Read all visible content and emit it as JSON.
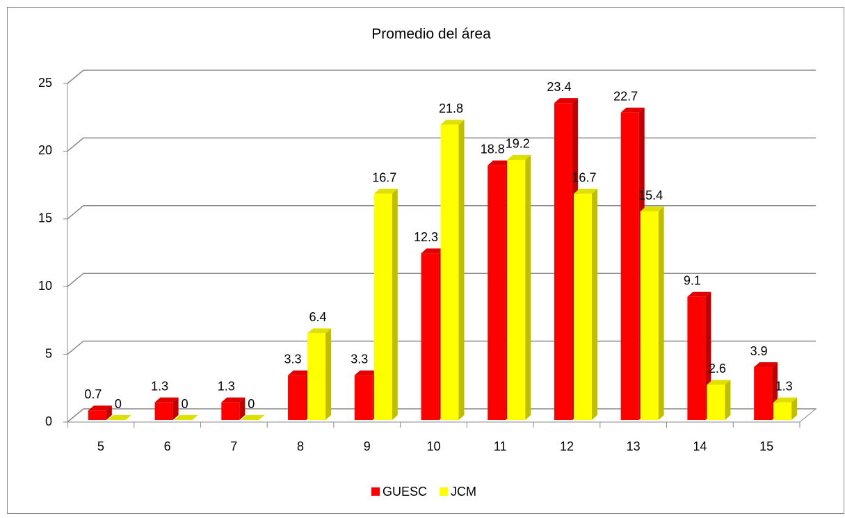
{
  "chart_data": {
    "type": "bar3d",
    "title": "Promedio del área",
    "categories": [
      "5",
      "6",
      "7",
      "8",
      "9",
      "10",
      "11",
      "12",
      "13",
      "14",
      "15"
    ],
    "series": [
      {
        "name": "GUESC",
        "color": "#ff0000",
        "values": [
          0.7,
          1.3,
          1.3,
          3.3,
          3.3,
          12.3,
          18.8,
          23.4,
          22.7,
          9.1,
          3.9
        ]
      },
      {
        "name": "JCM",
        "color": "#ffff00",
        "values": [
          0,
          0,
          0,
          6.4,
          16.7,
          21.8,
          19.2,
          16.7,
          15.4,
          2.6,
          1.3
        ]
      }
    ],
    "ylim": [
      0,
      25
    ],
    "yticks": [
      0,
      5,
      10,
      15,
      20,
      25
    ],
    "grid": true,
    "legend": "bottom"
  }
}
